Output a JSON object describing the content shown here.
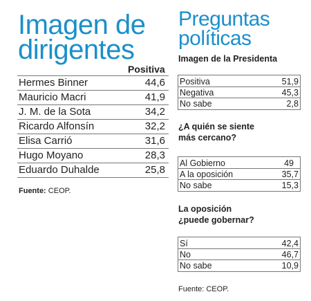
{
  "left": {
    "title_line1": "Imagen de",
    "title_line2": "dirigentes",
    "column_header": "Positiva",
    "rows": [
      {
        "name": "Hermes Binner",
        "value": "44,6"
      },
      {
        "name": "Mauricio Macri",
        "value": "41,9"
      },
      {
        "name": "J. M. de la Sota",
        "value": "34,2"
      },
      {
        "name": "Ricardo Alfonsín",
        "value": "32,2"
      },
      {
        "name": "Elisa Carrió",
        "value": "31,6"
      },
      {
        "name": "Hugo Moyano",
        "value": "28,3"
      },
      {
        "name": "Eduardo Duhalde",
        "value": "25,8"
      }
    ],
    "source_label": "Fuente:",
    "source_value": "CEOP."
  },
  "right": {
    "title_line1": "Preguntas",
    "title_line2": "políticas",
    "sections": [
      {
        "heading": [
          "Imagen de la Presidenta"
        ],
        "rows": [
          {
            "label": "Positiva",
            "value": "51,9"
          },
          {
            "label": "Negativa",
            "value": "45,3"
          },
          {
            "label": "No sabe",
            "value": "2,8"
          }
        ]
      },
      {
        "heading": [
          "¿A quién se siente",
          "más cercano?"
        ],
        "rows": [
          {
            "label": "Al Gobierno",
            "value": "49"
          },
          {
            "label": "A la oposición",
            "value": "35,7"
          },
          {
            "label": "No sabe",
            "value": "15,3"
          }
        ]
      },
      {
        "heading": [
          "La oposición",
          "¿puede gobernar?"
        ],
        "rows": [
          {
            "label": "Sí",
            "value": "42,4"
          },
          {
            "label": "No",
            "value": "46,7"
          },
          {
            "label": "No sabe",
            "value": "10,9"
          }
        ]
      }
    ],
    "source": "Fuente: CEOP."
  }
}
